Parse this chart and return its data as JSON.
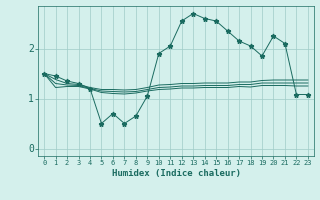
{
  "xlabel": "Humidex (Indice chaleur)",
  "background_color": "#d4f0ec",
  "grid_color": "#a0ccc8",
  "line_color": "#1a6b60",
  "marker": "*",
  "marker_size": 3.5,
  "linewidth": 0.7,
  "x_values": [
    0,
    1,
    2,
    3,
    4,
    5,
    6,
    7,
    8,
    9,
    10,
    11,
    12,
    13,
    14,
    15,
    16,
    17,
    18,
    19,
    20,
    21,
    22,
    23
  ],
  "ylim": [
    -0.15,
    2.85
  ],
  "xlim": [
    -0.5,
    23.5
  ],
  "yticks": [
    0,
    1,
    2
  ],
  "series": {
    "line_avg1": [
      1.5,
      1.38,
      1.3,
      1.28,
      1.22,
      1.18,
      1.18,
      1.17,
      1.18,
      1.22,
      1.27,
      1.28,
      1.3,
      1.3,
      1.31,
      1.31,
      1.31,
      1.33,
      1.33,
      1.36,
      1.37,
      1.37,
      1.37,
      1.37
    ],
    "line_avg2": [
      1.5,
      1.3,
      1.27,
      1.26,
      1.2,
      1.15,
      1.14,
      1.13,
      1.14,
      1.18,
      1.22,
      1.23,
      1.25,
      1.25,
      1.26,
      1.26,
      1.26,
      1.28,
      1.28,
      1.31,
      1.31,
      1.31,
      1.31,
      1.31
    ],
    "line_avg3": [
      1.5,
      1.22,
      1.24,
      1.24,
      1.19,
      1.12,
      1.1,
      1.09,
      1.11,
      1.15,
      1.18,
      1.19,
      1.21,
      1.21,
      1.22,
      1.22,
      1.22,
      1.24,
      1.23,
      1.26,
      1.26,
      1.26,
      1.25,
      1.25
    ],
    "line_main": [
      1.5,
      1.45,
      1.35,
      1.3,
      1.2,
      0.5,
      0.7,
      0.5,
      0.65,
      1.05,
      1.9,
      2.05,
      2.55,
      2.7,
      2.6,
      2.55,
      2.35,
      2.15,
      2.05,
      1.85,
      2.25,
      2.1,
      1.08,
      1.08
    ]
  }
}
